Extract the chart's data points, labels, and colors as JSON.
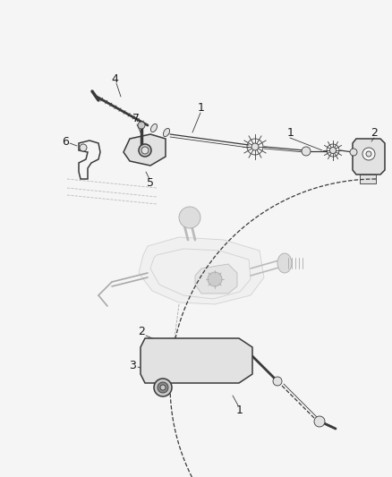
{
  "bg_color": "#f5f5f5",
  "line_color": "#3a3a3a",
  "label_color": "#1a1a1a",
  "fig_width": 4.38,
  "fig_height": 5.33,
  "dpi": 100,
  "lw_main": 1.1,
  "lw_cable": 0.9,
  "lw_thin": 0.6,
  "gray_fill": "#c8c8c8",
  "light_gray": "#e2e2e2",
  "white_fill": "#f5f5f5"
}
